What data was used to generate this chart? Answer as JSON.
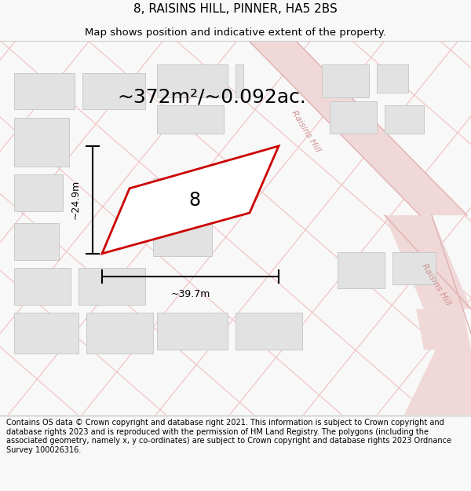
{
  "title": "8, RAISINS HILL, PINNER, HA5 2BS",
  "subtitle": "Map shows position and indicative extent of the property.",
  "area_text": "~372m²/~0.092ac.",
  "width_label": "~39.7m",
  "height_label": "~24.9m",
  "property_number": "8",
  "footer_text": "Contains OS data © Crown copyright and database right 2021. This information is subject to Crown copyright and database rights 2023 and is reproduced with the permission of HM Land Registry. The polygons (including the associated geometry, namely x, y co-ordinates) are subject to Crown copyright and database rights 2023 Ordnance Survey 100026316.",
  "bg_color": "#f8f8f8",
  "map_bg": "#ffffff",
  "grid_line_color": "#f0c0c0",
  "road_fill": "#f0d8d8",
  "road_edge": "#e0b0b0",
  "block_color": "#e2e2e2",
  "block_edge": "#c8c8c8",
  "property_edge": "#cc0000",
  "road_label_color": "#d09090",
  "title_fontsize": 11,
  "subtitle_fontsize": 9.5,
  "area_fontsize": 18,
  "dim_fontsize": 9,
  "prop_label_fontsize": 16,
  "footer_fontsize": 7.0
}
